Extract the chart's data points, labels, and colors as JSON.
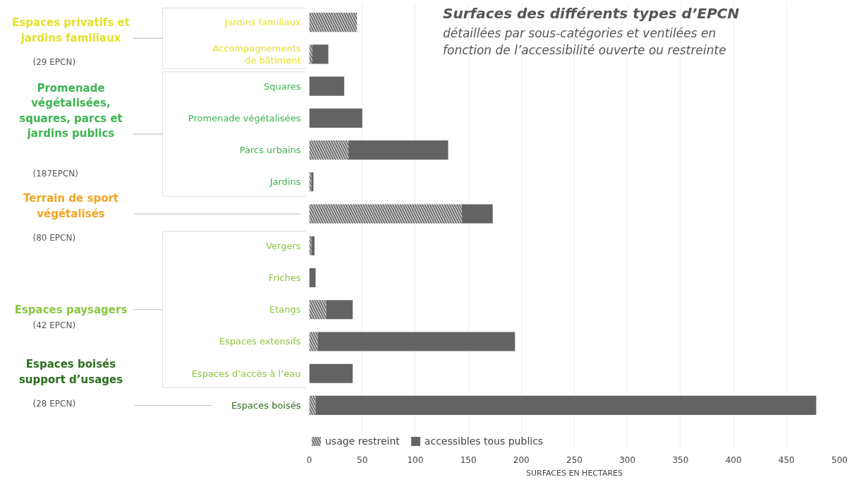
{
  "chart_data": {
    "type": "bar",
    "orientation": "horizontal",
    "stacked": true,
    "title": "Surfaces des différents types d’EPCN",
    "subtitle": "détaillées par sous-catégories et ventilées en\nfonction de l’accessibilité ouverte ou restreinte",
    "xlabel": "SURFACES EN HECTARES",
    "categories": [
      "Jardins familiaux",
      "Accompagnements\nde bâtiment",
      "Squares",
      "Promenade végétalisées",
      "Parcs urbains",
      "Jardins",
      null,
      "Vergers",
      "Friches",
      "Etangs",
      "Espaces extensifs",
      "Espaces d’accès à l’eau",
      "Espaces boisés"
    ],
    "series": [
      {
        "name": "usage restreint",
        "color": "#c8c8c8",
        "values": [
          45,
          3,
          0,
          0,
          37,
          2,
          144,
          2,
          0,
          16,
          8,
          0,
          6
        ]
      },
      {
        "name": "accessibles tous publics",
        "color": "#636363",
        "values": [
          0,
          15,
          33,
          50,
          94,
          2,
          29,
          3,
          6,
          25,
          186,
          41,
          472
        ]
      }
    ],
    "annotations": [
      "Espaces privatifs et\njardins familiaux",
      "(29 EPCN)",
      "Promenade\nvégétalisées,\nsquares, parcs et\njardins publics",
      "(187EPCN)",
      "Terrain de sport\nvégétalisés",
      "(80 EPCN)",
      "Espaces paysagers",
      "(42 EPCN)",
      "Espaces boisés\nsupport d’usages",
      "(28 EPCN)"
    ],
    "xlim": [
      0,
      500
    ],
    "xticks": [
      0,
      50,
      100,
      150,
      200,
      250,
      300,
      350,
      400,
      450,
      500
    ],
    "grid": "x",
    "legend": "bottom left"
  }
}
